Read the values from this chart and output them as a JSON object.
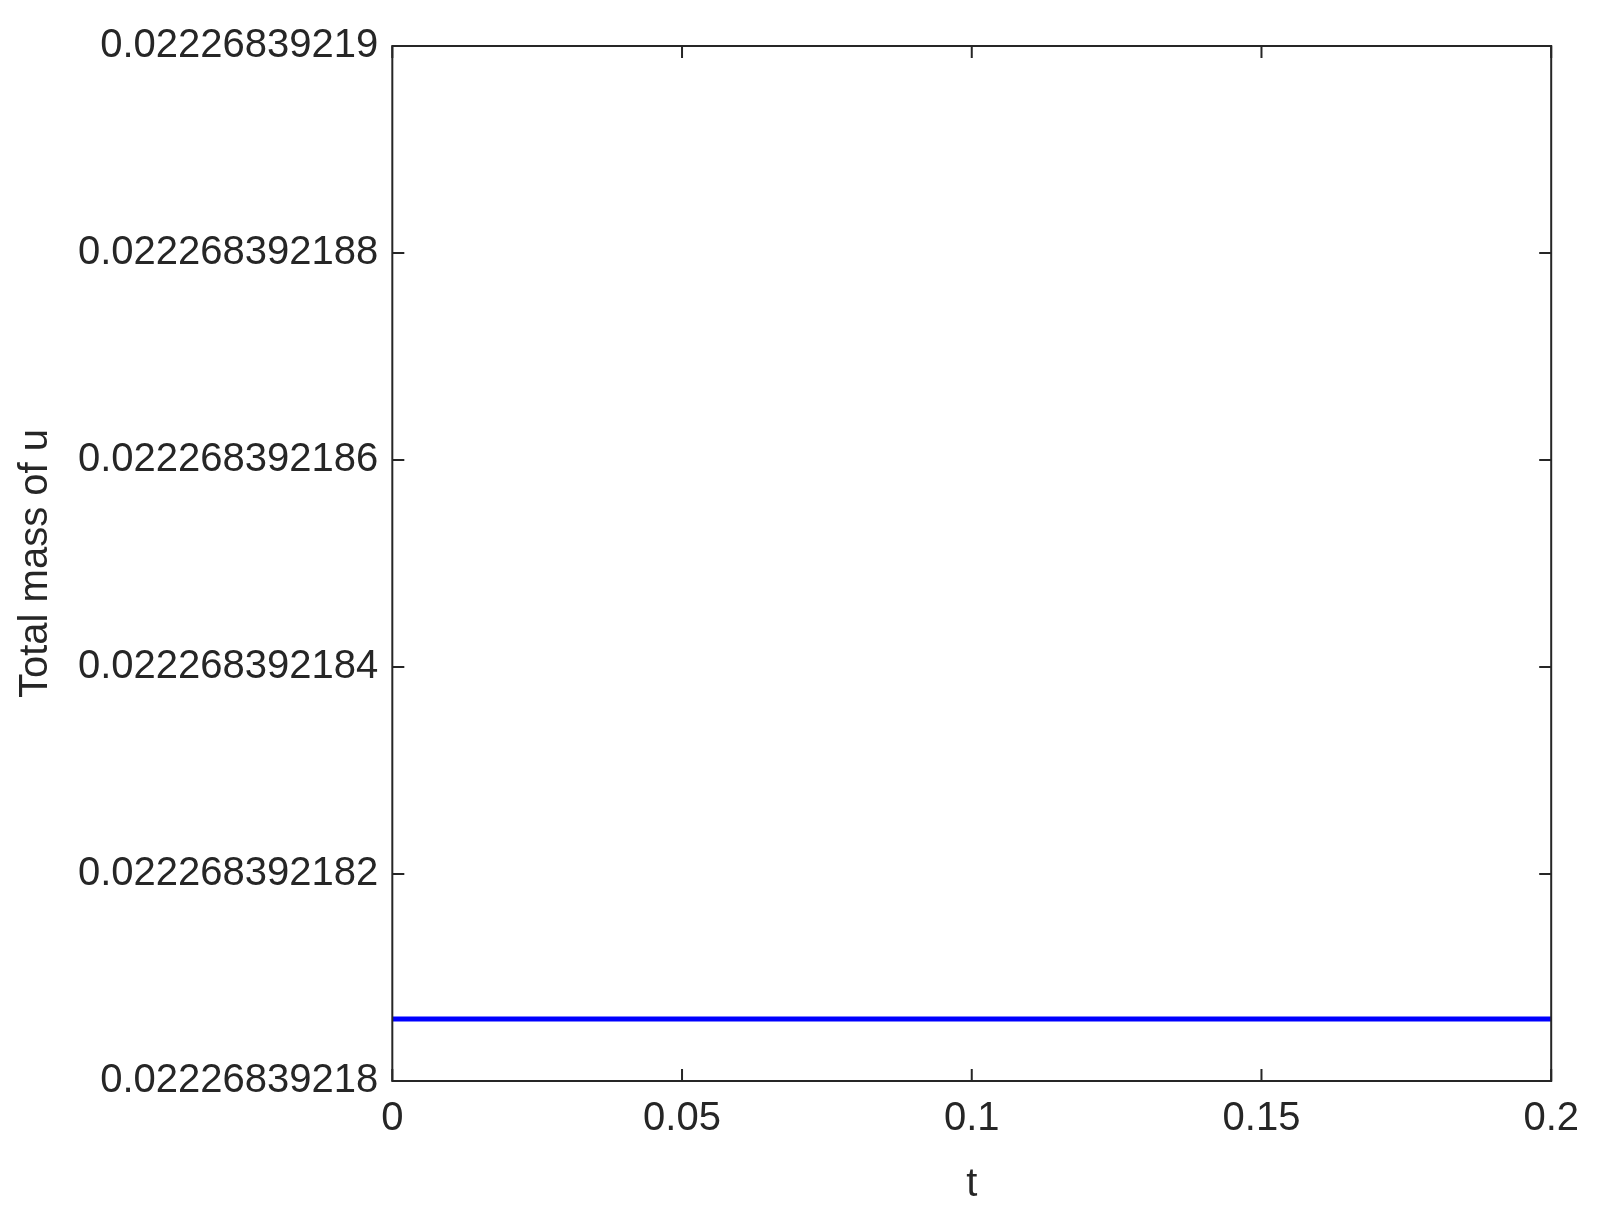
{
  "chart_data": {
    "type": "line",
    "xlabel": "t",
    "ylabel": "Total mass of u",
    "series": [
      {
        "color": "#0000ff",
        "x": [
          0,
          0.2
        ],
        "values": [
          0.0222683921806,
          0.0222683921806
        ]
      }
    ],
    "xlim": [
      0,
      0.2
    ],
    "xticks": [
      0,
      0.05,
      0.1,
      0.15,
      0.2
    ],
    "ylim": [
      0.02226839218,
      0.02226839219
    ],
    "yticks": [
      0.02226839218,
      0.022268392182,
      0.022268392184,
      0.022268392186,
      0.022268392188,
      0.02226839219
    ],
    "grid": false,
    "legend": false,
    "marker": "none",
    "line_style": "solid"
  }
}
